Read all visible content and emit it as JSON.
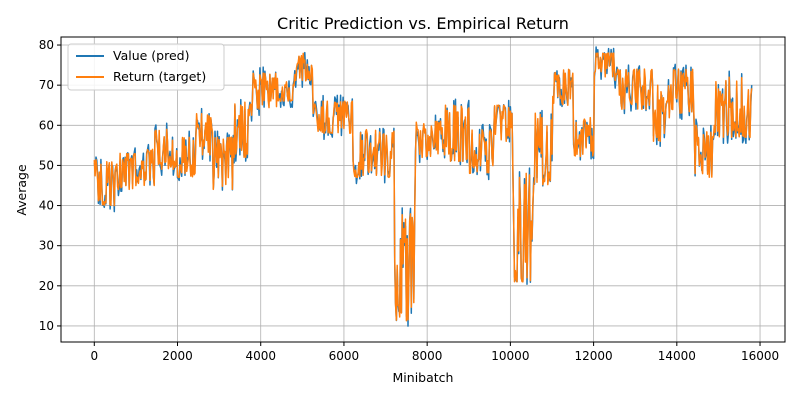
{
  "chart_data": {
    "type": "line",
    "title": "Critic Prediction vs. Empirical Return",
    "xlabel": "Minibatch",
    "ylabel": "Average",
    "xlim": [
      -800,
      16600
    ],
    "ylim": [
      6,
      82
    ],
    "xticks": [
      0,
      2000,
      4000,
      6000,
      8000,
      10000,
      12000,
      14000,
      16000
    ],
    "yticks": [
      10,
      20,
      30,
      40,
      50,
      60,
      70,
      80
    ],
    "grid": true,
    "legend_position": "top-left",
    "series": [
      {
        "name": "Value (pred)",
        "color": "#1f77b4"
      },
      {
        "name": "Return (target)",
        "color": "#ff7f0e"
      }
    ],
    "segments": [
      {
        "x0": 0,
        "x1": 150,
        "low": 41,
        "high": 52
      },
      {
        "x0": 150,
        "x1": 500,
        "low": 40,
        "high": 51
      },
      {
        "x0": 500,
        "x1": 1100,
        "low": 44,
        "high": 53
      },
      {
        "x0": 1100,
        "x1": 1450,
        "low": 45,
        "high": 54
      },
      {
        "x0": 1450,
        "x1": 1950,
        "low": 49,
        "high": 59
      },
      {
        "x0": 1950,
        "x1": 2450,
        "low": 47,
        "high": 57
      },
      {
        "x0": 2450,
        "x1": 2850,
        "low": 51,
        "high": 63
      },
      {
        "x0": 2850,
        "x1": 3350,
        "low": 44,
        "high": 57
      },
      {
        "x0": 3350,
        "x1": 3800,
        "low": 52,
        "high": 66
      },
      {
        "x0": 3800,
        "x1": 4400,
        "low": 64,
        "high": 73
      },
      {
        "x0": 4400,
        "x1": 4800,
        "low": 66,
        "high": 71
      },
      {
        "x0": 4800,
        "x1": 5250,
        "low": 71,
        "high": 78
      },
      {
        "x0": 5250,
        "x1": 6200,
        "low": 58,
        "high": 66
      },
      {
        "x0": 6200,
        "x1": 7200,
        "low": 47,
        "high": 59
      },
      {
        "x0": 7200,
        "x1": 7700,
        "low": 11,
        "high": 38
      },
      {
        "x0": 7700,
        "x1": 8400,
        "low": 52,
        "high": 61
      },
      {
        "x0": 8400,
        "x1": 9000,
        "low": 51,
        "high": 65
      },
      {
        "x0": 9000,
        "x1": 9600,
        "low": 48,
        "high": 59
      },
      {
        "x0": 9600,
        "x1": 10050,
        "low": 56,
        "high": 65
      },
      {
        "x0": 10050,
        "x1": 10550,
        "low": 21,
        "high": 48
      },
      {
        "x0": 10550,
        "x1": 11000,
        "low": 45,
        "high": 63
      },
      {
        "x0": 11000,
        "x1": 11500,
        "low": 65,
        "high": 74
      },
      {
        "x0": 11500,
        "x1": 12000,
        "low": 52,
        "high": 62
      },
      {
        "x0": 12000,
        "x1": 12500,
        "low": 72,
        "high": 78
      },
      {
        "x0": 12500,
        "x1": 13400,
        "low": 64,
        "high": 74
      },
      {
        "x0": 13400,
        "x1": 13850,
        "low": 56,
        "high": 70
      },
      {
        "x0": 13850,
        "x1": 14400,
        "low": 63,
        "high": 74
      },
      {
        "x0": 14400,
        "x1": 14900,
        "low": 47,
        "high": 60
      },
      {
        "x0": 14900,
        "x1": 15800,
        "low": 57,
        "high": 72
      }
    ]
  }
}
